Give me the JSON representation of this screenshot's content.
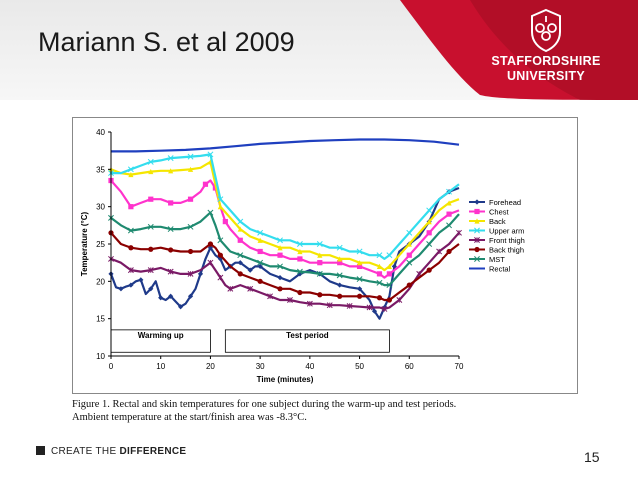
{
  "slide": {
    "title": "Mariann S. et al 2009",
    "logo_line1": "STAFFORDSHIRE",
    "logo_line2": "UNIVERSITY",
    "footer_plain": "CREATE THE ",
    "footer_bold": "DIFFERENCE",
    "page_number": "15",
    "caption_line1": "Figure 1. Rectal and skin temperatures for one subject during the warm-up and test periods.",
    "caption_line2": "Ambient temperature at the start/finish area was -8.3°C.",
    "colors": {
      "banner_red": "#c8102e",
      "banner_dark": "#a00d22"
    }
  },
  "chart_data": {
    "type": "line",
    "title": "",
    "xlabel": "Time (minutes)",
    "ylabel": "Temperature (°C)",
    "xlim": [
      0,
      70
    ],
    "ylim": [
      10,
      40
    ],
    "xticks": [
      0,
      10,
      20,
      30,
      40,
      50,
      60,
      70
    ],
    "yticks": [
      10,
      15,
      20,
      25,
      30,
      35,
      40
    ],
    "legend_position": "right",
    "periods": [
      {
        "label": "Warming up",
        "start": 0,
        "end": 20
      },
      {
        "label": "Test period",
        "start": 23,
        "end": 56
      }
    ],
    "series": [
      {
        "name": "Forehead",
        "color": "#1f3a8a",
        "marker": "diamond",
        "x": [
          0,
          1,
          2,
          3,
          4,
          5,
          6,
          7,
          8,
          9,
          10,
          11,
          12,
          13,
          14,
          15,
          16,
          17,
          18,
          19,
          20,
          21,
          22,
          23,
          24,
          25,
          26,
          27,
          28,
          29,
          30,
          32,
          34,
          36,
          38,
          40,
          42,
          44,
          46,
          48,
          50,
          52,
          53,
          54,
          55,
          56,
          57,
          58,
          60,
          62,
          64,
          66,
          68,
          70
        ],
        "y": [
          21,
          19.2,
          19,
          19.3,
          19.5,
          20,
          20.2,
          18.3,
          19,
          20,
          17.8,
          17.5,
          18,
          17.3,
          16.6,
          17,
          18,
          19,
          21,
          23,
          24.5,
          23.5,
          23,
          21.5,
          22,
          22.5,
          22.5,
          22,
          21.5,
          22,
          22,
          21,
          20.5,
          20,
          21,
          21.5,
          21,
          20,
          19.5,
          19.2,
          19,
          17.5,
          16,
          15,
          16.5,
          18,
          22,
          24,
          25,
          26,
          28,
          31,
          32,
          32.5
        ]
      },
      {
        "name": "Chest",
        "color": "#ff33cc",
        "marker": "square",
        "x": [
          0,
          2,
          4,
          6,
          8,
          10,
          12,
          14,
          16,
          18,
          19,
          20,
          21,
          22,
          23,
          24,
          26,
          28,
          30,
          32,
          34,
          36,
          38,
          40,
          42,
          44,
          46,
          48,
          50,
          52,
          54,
          55,
          56,
          58,
          60,
          62,
          64,
          66,
          68,
          70
        ],
        "y": [
          33.5,
          32,
          30,
          30.5,
          31,
          31,
          30.5,
          30.5,
          31,
          32,
          33,
          33.5,
          32.5,
          30,
          28,
          27,
          25.5,
          24.5,
          24,
          23.5,
          23.5,
          23,
          23,
          22.5,
          22.5,
          22.5,
          22.5,
          22,
          22,
          21.5,
          21,
          20.5,
          21,
          22,
          23.5,
          25,
          26.5,
          28,
          29,
          29.5
        ]
      },
      {
        "name": "Back",
        "color": "#f5e600",
        "marker": "triangle",
        "x": [
          0,
          2,
          4,
          6,
          8,
          10,
          12,
          14,
          16,
          18,
          20,
          21,
          22,
          24,
          26,
          28,
          30,
          32,
          34,
          36,
          38,
          40,
          42,
          44,
          46,
          48,
          50,
          52,
          54,
          55,
          56,
          58,
          60,
          62,
          64,
          66,
          68,
          70
        ],
        "y": [
          35,
          34.5,
          34.3,
          34.5,
          34.7,
          34.8,
          34.8,
          34.9,
          35,
          35.2,
          36,
          33,
          30,
          28.5,
          27,
          26,
          25.5,
          25,
          24.5,
          24.5,
          24,
          24,
          23.5,
          23.5,
          23,
          23,
          22.5,
          22.5,
          22,
          21.5,
          22,
          23.5,
          25,
          26.5,
          28,
          29.5,
          30.5,
          31
        ]
      },
      {
        "name": "Upper arm",
        "color": "#33ddee",
        "marker": "cross",
        "x": [
          0,
          2,
          4,
          6,
          8,
          10,
          12,
          14,
          16,
          18,
          20,
          21,
          22,
          24,
          26,
          28,
          30,
          32,
          34,
          36,
          38,
          40,
          42,
          44,
          46,
          48,
          50,
          52,
          54,
          55,
          56,
          58,
          60,
          62,
          64,
          66,
          68,
          70
        ],
        "y": [
          34.5,
          34.5,
          35,
          35.5,
          36,
          36.2,
          36.5,
          36.6,
          36.7,
          36.8,
          37,
          34,
          31,
          29.5,
          28,
          27,
          26.5,
          26,
          25.5,
          25.5,
          25,
          25,
          25,
          24.5,
          24.5,
          24,
          24,
          23.5,
          23.5,
          23,
          23.5,
          25,
          26.5,
          28,
          29.5,
          31,
          32,
          33
        ]
      },
      {
        "name": "Front thigh",
        "color": "#7a1a66",
        "marker": "asterisk",
        "x": [
          0,
          2,
          4,
          6,
          8,
          10,
          12,
          14,
          16,
          18,
          20,
          21,
          22,
          23,
          24,
          26,
          28,
          30,
          32,
          34,
          36,
          38,
          40,
          42,
          44,
          46,
          48,
          50,
          52,
          54,
          55,
          56,
          58,
          60,
          62,
          64,
          66,
          68,
          70
        ],
        "y": [
          23,
          22.5,
          21.5,
          21.3,
          21.5,
          21.8,
          21.3,
          21,
          21,
          21.5,
          22.5,
          21.5,
          20.5,
          19.5,
          19,
          19.5,
          19,
          18.5,
          18,
          17.5,
          17.5,
          17.2,
          17,
          17,
          16.8,
          16.8,
          16.7,
          16.6,
          16.5,
          16.5,
          16.3,
          16.5,
          17.5,
          19,
          21,
          22.5,
          24,
          25,
          26.5
        ]
      },
      {
        "name": "Back thigh",
        "color": "#8b0000",
        "marker": "circle",
        "x": [
          0,
          2,
          4,
          6,
          8,
          10,
          12,
          14,
          16,
          18,
          20,
          21,
          22,
          24,
          26,
          28,
          30,
          32,
          34,
          36,
          38,
          40,
          42,
          44,
          46,
          48,
          50,
          52,
          54,
          55,
          56,
          58,
          60,
          62,
          64,
          66,
          68,
          70
        ],
        "y": [
          26.5,
          25,
          24.5,
          24.3,
          24.3,
          24.5,
          24.2,
          24,
          24,
          24,
          25,
          24.5,
          23.5,
          22,
          21,
          20.5,
          20,
          19.5,
          19,
          19,
          18.5,
          18.5,
          18.2,
          18.2,
          18,
          18,
          18,
          18,
          17.8,
          17.5,
          17.5,
          18.5,
          19.5,
          20.5,
          21.5,
          22.5,
          24,
          25
        ]
      },
      {
        "name": "MST",
        "color": "#1f8a70",
        "marker": "cross",
        "x": [
          0,
          2,
          4,
          6,
          8,
          10,
          12,
          14,
          16,
          18,
          20,
          21,
          22,
          24,
          26,
          28,
          30,
          32,
          34,
          36,
          38,
          40,
          42,
          44,
          46,
          48,
          50,
          52,
          54,
          55,
          56,
          58,
          60,
          62,
          64,
          66,
          68,
          70
        ],
        "y": [
          28.5,
          27.5,
          26.8,
          27,
          27.3,
          27.3,
          27,
          27,
          27.3,
          28,
          29.2,
          27.5,
          25.5,
          24,
          23.5,
          23,
          22.5,
          22,
          22,
          21.5,
          21.3,
          21.2,
          21,
          21,
          20.8,
          20.5,
          20.3,
          20,
          19.8,
          19.5,
          19.5,
          21,
          22.5,
          23.5,
          25,
          26.5,
          27.5,
          29
        ]
      },
      {
        "name": "Rectal",
        "color": "#1f3fbf",
        "marker": "none",
        "x": [
          0,
          5,
          10,
          15,
          20,
          25,
          30,
          35,
          40,
          45,
          50,
          55,
          60,
          65,
          70
        ],
        "y": [
          37.4,
          37.4,
          37.5,
          37.6,
          37.8,
          38.1,
          38.4,
          38.6,
          38.8,
          38.9,
          39,
          39,
          38.9,
          38.7,
          38.3
        ]
      }
    ]
  }
}
